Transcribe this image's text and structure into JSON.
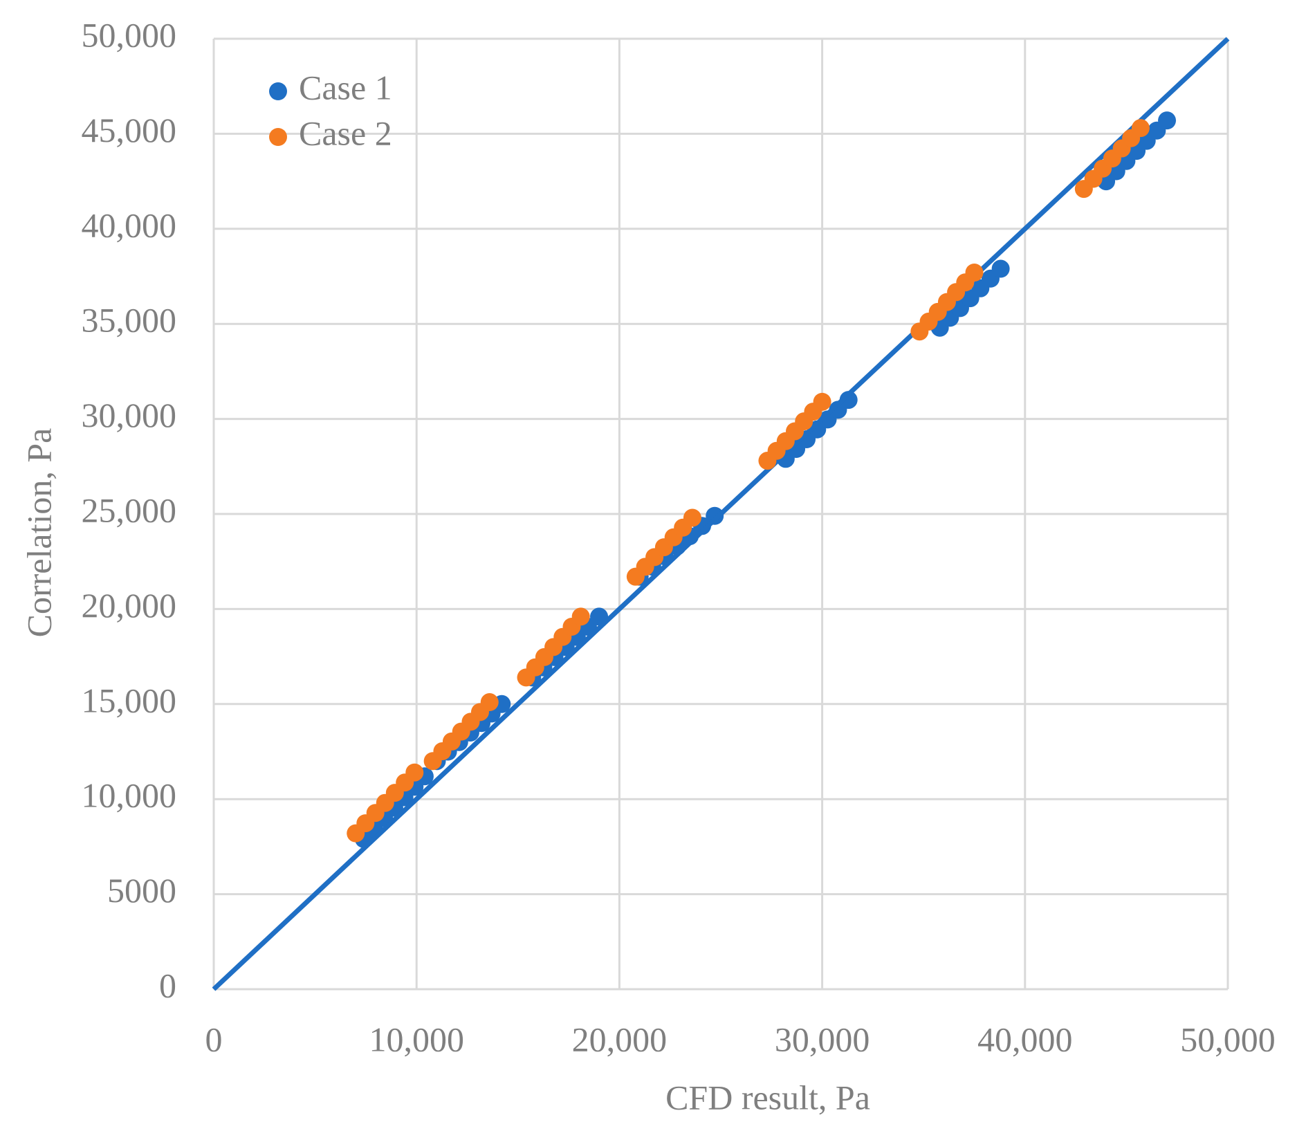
{
  "chart_data": {
    "type": "scatter",
    "x_label": "CFD result, Pa",
    "y_label": "Correlation, Pa",
    "xlim": [
      0,
      50000
    ],
    "ylim": [
      0,
      50000
    ],
    "xticks": [
      0,
      {
        "value": 10000,
        "label": "10,000"
      },
      {
        "value": 20000,
        "label": "20,000"
      },
      {
        "value": 30000,
        "label": "30,000"
      },
      {
        "value": 40000,
        "label": "40,000"
      },
      {
        "value": 50000,
        "label": "50,000"
      }
    ],
    "yticks": [
      0,
      5000,
      {
        "value": 10000,
        "label": "10,000"
      },
      {
        "value": 15000,
        "label": "15,000"
      },
      {
        "value": 20000,
        "label": "20,000"
      },
      {
        "value": 25000,
        "label": "25,000"
      },
      {
        "value": 30000,
        "label": "30,000"
      },
      {
        "value": 35000,
        "label": "35,000"
      },
      {
        "value": 40000,
        "label": "40,000"
      },
      {
        "value": 45000,
        "label": "45,000"
      },
      {
        "value": 50000,
        "label": "50,000"
      }
    ],
    "grid": true,
    "legend": "upper left",
    "reference_line": {
      "x": [
        0,
        50000
      ],
      "y": [
        0,
        50000
      ],
      "color": "#1f6fc5"
    },
    "series": [
      {
        "name": "Case 1",
        "color": "#1f6fc5",
        "x": [
          7400,
          7900,
          8400,
          8900,
          9400,
          9900,
          10400,
          11000,
          11550,
          12100,
          12650,
          13200,
          13700,
          14200,
          15700,
          16250,
          16800,
          17350,
          17900,
          18450,
          19000,
          21000,
          21620,
          22230,
          22850,
          23470,
          24080,
          24700,
          28200,
          28720,
          29230,
          29750,
          30270,
          30780,
          31300,
          35800,
          36300,
          36800,
          37300,
          37800,
          38300,
          38800,
          44000,
          44500,
          45000,
          45500,
          46000,
          46500,
          47000
        ],
        "values": [
          7900,
          8450,
          9000,
          9550,
          10100,
          10650,
          11200,
          12000,
          12500,
          13000,
          13500,
          14000,
          14500,
          15000,
          16400,
          16930,
          17470,
          18000,
          18530,
          19070,
          19600,
          21700,
          22230,
          22770,
          23300,
          23830,
          24370,
          24900,
          27900,
          28420,
          28930,
          29450,
          29970,
          30480,
          31000,
          34800,
          35320,
          35830,
          36350,
          36870,
          37380,
          37900,
          42500,
          43030,
          43570,
          44100,
          44630,
          45170,
          45700
        ]
      },
      {
        "name": "Case 2",
        "color": "#f47b20",
        "x": [
          7000,
          7480,
          7970,
          8450,
          8930,
          9420,
          9900,
          10800,
          11270,
          11730,
          12200,
          12670,
          13130,
          13600,
          15400,
          15850,
          16300,
          16750,
          17200,
          17650,
          18100,
          20800,
          21270,
          21730,
          22200,
          22670,
          23130,
          23600,
          27300,
          27750,
          28200,
          28650,
          29100,
          29550,
          30000,
          34800,
          35250,
          35700,
          36150,
          36600,
          37050,
          37500,
          42900,
          43370,
          43830,
          44300,
          44770,
          45230,
          45700
        ],
        "values": [
          8200,
          8730,
          9270,
          9800,
          10330,
          10870,
          11400,
          12000,
          12520,
          13030,
          13550,
          14070,
          14580,
          15100,
          16400,
          16930,
          17470,
          18000,
          18530,
          19070,
          19600,
          21700,
          22220,
          22730,
          23250,
          23770,
          24280,
          24800,
          27800,
          28320,
          28830,
          29350,
          29870,
          30380,
          30900,
          34600,
          35120,
          35630,
          36150,
          36670,
          37180,
          37700,
          42100,
          42630,
          43170,
          43700,
          44230,
          44770,
          45300
        ]
      }
    ]
  }
}
